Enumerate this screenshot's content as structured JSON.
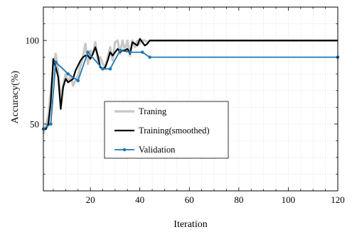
{
  "chart_data": {
    "type": "line",
    "xlabel": "Iteration",
    "ylabel": "Accuracy(%)",
    "xlim": [
      1,
      120
    ],
    "ylim": [
      10,
      120
    ],
    "xticks": [
      20,
      40,
      60,
      80,
      100,
      120
    ],
    "yticks": [
      50,
      100
    ],
    "x_minor_step": 5,
    "y_minor_step": 10,
    "grid": true,
    "legend_position": "center-left",
    "series": [
      {
        "name": "Traning",
        "color": "#c8c8c8",
        "x": [
          1,
          2,
          3,
          4,
          5,
          6,
          7,
          8,
          9,
          10,
          11,
          12,
          13,
          14,
          15,
          16,
          17,
          18,
          19,
          20,
          21,
          22,
          23,
          24,
          25,
          26,
          27,
          28,
          29,
          30,
          31,
          32,
          33,
          34,
          35,
          36,
          37,
          38,
          39,
          40,
          41,
          42,
          43,
          44,
          45,
          46,
          120
        ],
        "y": [
          44,
          49,
          55,
          70,
          82,
          92,
          81,
          64,
          73,
          80,
          75,
          79,
          73,
          76,
          79,
          85,
          90,
          98,
          86,
          94,
          92,
          99,
          88,
          90,
          86,
          84,
          90,
          96,
          88,
          99,
          100,
          92,
          100,
          94,
          100,
          91,
          100,
          96,
          100,
          98,
          100,
          100,
          99,
          100,
          100,
          100,
          100
        ]
      },
      {
        "name": "Training(smoothed)",
        "color": "#000000",
        "x": [
          1,
          2,
          3,
          4,
          5,
          6,
          7,
          8,
          9,
          10,
          11,
          12,
          13,
          14,
          15,
          16,
          17,
          18,
          19,
          20,
          21,
          22,
          23,
          24,
          25,
          26,
          27,
          28,
          29,
          30,
          31,
          32,
          33,
          34,
          35,
          36,
          37,
          38,
          39,
          40,
          41,
          42,
          43,
          44,
          45,
          46,
          47,
          120
        ],
        "y": [
          47,
          47,
          50,
          63,
          89,
          84,
          78,
          59,
          72,
          77,
          75,
          76,
          77,
          82,
          85,
          88,
          90,
          91,
          91,
          89,
          92,
          96,
          91,
          84,
          83,
          84,
          88,
          93,
          91,
          93,
          95,
          93,
          94,
          94,
          95,
          92,
          99,
          98,
          97,
          101,
          99,
          97,
          98,
          100,
          100,
          100,
          100,
          100
        ]
      },
      {
        "name": "Validation",
        "color": "#1f77b4",
        "x": [
          1,
          4,
          6,
          11,
          15,
          19,
          25,
          28,
          32,
          36,
          41,
          44,
          120
        ],
        "y": [
          47,
          50,
          87,
          80,
          76,
          93,
          83,
          83,
          94,
          93,
          93,
          90,
          90
        ]
      }
    ]
  }
}
